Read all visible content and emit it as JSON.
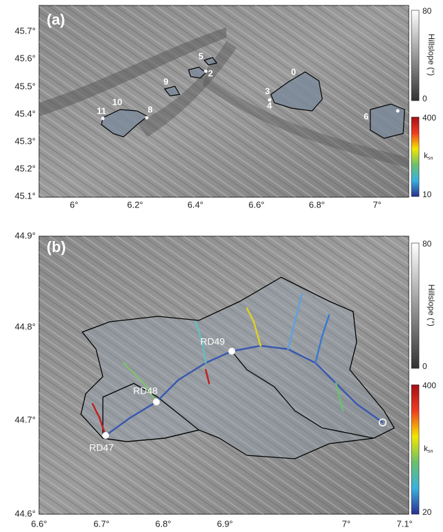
{
  "panels": [
    {
      "label": "(a)",
      "y_ticks": [
        "45.7°",
        "45.6°",
        "45.5°",
        "45.4°",
        "45.3°",
        "45.2°",
        "45.1°"
      ],
      "x_ticks": [
        "6°",
        "6.2°",
        "6.4°",
        "6.6°",
        "6.8°",
        "7°"
      ],
      "catchment_labels": [
        "0",
        "2",
        "3",
        "4",
        "5",
        "6",
        "8",
        "9",
        "10",
        "11"
      ],
      "colorbars": [
        {
          "title": "Hillslope (°)",
          "max": "80",
          "min": "0"
        },
        {
          "title": "k",
          "subscript": "sn",
          "max": "400",
          "min": "10"
        }
      ]
    },
    {
      "label": "(b)",
      "y_ticks": [
        "44.9°",
        "44.8°",
        "44.7°",
        "44.6°"
      ],
      "x_ticks": [
        "6.6°",
        "6.7°",
        "6.8°",
        "6.9°",
        "7°",
        "7.1°"
      ],
      "stations": [
        "RD49",
        "RD48",
        "RD47"
      ],
      "colorbars": [
        {
          "title": "Hillslope (°)",
          "max": "80",
          "min": "0"
        },
        {
          "title": "k",
          "subscript": "sn",
          "max": "400",
          "min": "20"
        }
      ]
    }
  ]
}
